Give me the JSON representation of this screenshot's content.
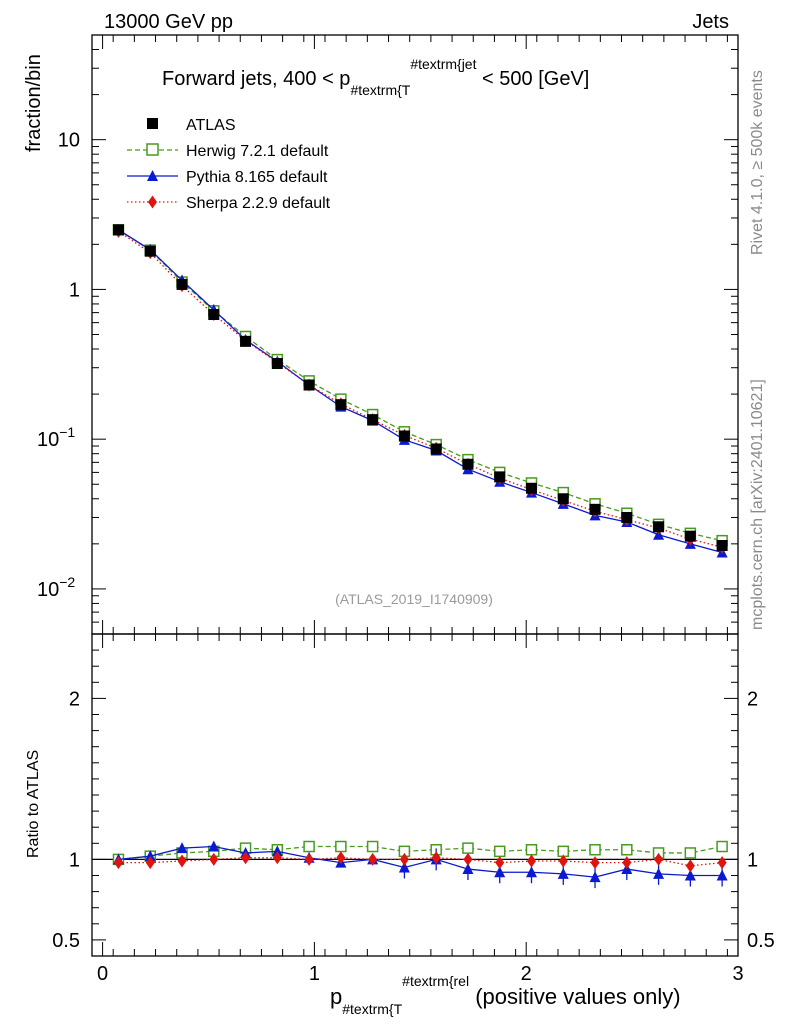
{
  "header": {
    "left": "13000 GeV pp",
    "right": "Jets"
  },
  "side_text": {
    "top": "Rivet 4.1.0, ≥ 500k events",
    "bottom": "mcplots.cern.ch [arXiv:2401.10621]"
  },
  "chart_data": {
    "type": "line",
    "title": {
      "prefix": "Forward jets, 400 < p",
      "sub": "#textrm{T",
      "sup": "#textrm{jet",
      "suffix": " < 500 [GeV]"
    },
    "watermark": "(ATLAS_2019_I1740909)",
    "ylabel_main": "fraction/bin",
    "ylabel_ratio": "Ratio to ATLAS",
    "xlabel": {
      "prefix": "p",
      "sub": "#textrm{T",
      "sup": "#textrm{rel",
      "suffix": " (positive values only)"
    },
    "xlim": [
      -0.05,
      3.0
    ],
    "ylim_main": [
      0.005,
      50
    ],
    "ylim_ratio": [
      0.4,
      2.4
    ],
    "x_ticks": [
      "0",
      "1",
      "2",
      "3"
    ],
    "y_ticks_main": [
      {
        "v": 10,
        "base": "10",
        "exp": ""
      },
      {
        "v": 1,
        "base": "1",
        "exp": ""
      },
      {
        "v": 0.1,
        "base": "10",
        "exp": "−1"
      },
      {
        "v": 0.01,
        "base": "10",
        "exp": "−2"
      }
    ],
    "y_ticks_ratio": [
      {
        "v": 0.5,
        "label": "0.5"
      },
      {
        "v": 1,
        "label": "1"
      },
      {
        "v": 2,
        "label": "2"
      }
    ],
    "x": [
      0.075,
      0.225,
      0.375,
      0.525,
      0.675,
      0.825,
      0.975,
      1.125,
      1.275,
      1.425,
      1.575,
      1.725,
      1.875,
      2.025,
      2.175,
      2.325,
      2.475,
      2.625,
      2.775,
      2.925
    ],
    "series": [
      {
        "name": "ATLAS",
        "color": "#000000",
        "marker": "square-filled",
        "line": "none",
        "values": [
          2.5,
          1.8,
          1.08,
          0.68,
          0.45,
          0.32,
          0.23,
          0.17,
          0.135,
          0.105,
          0.086,
          0.068,
          0.056,
          0.047,
          0.04,
          0.034,
          0.03,
          0.026,
          0.0225,
          0.0195
        ],
        "ratio": [
          1,
          1,
          1,
          1,
          1,
          1,
          1,
          1,
          1,
          1,
          1,
          1,
          1,
          1,
          1,
          1,
          1,
          1,
          1,
          1
        ]
      },
      {
        "name": "Herwig 7.2.1 default",
        "color": "#4a9a1e",
        "marker": "square-open",
        "line": "dashed",
        "values": [
          2.5,
          1.83,
          1.12,
          0.72,
          0.485,
          0.34,
          0.245,
          0.185,
          0.146,
          0.112,
          0.092,
          0.073,
          0.06,
          0.051,
          0.044,
          0.037,
          0.032,
          0.027,
          0.0235,
          0.021
        ],
        "ratio": [
          1.0,
          1.02,
          1.04,
          1.05,
          1.07,
          1.06,
          1.08,
          1.08,
          1.08,
          1.05,
          1.06,
          1.07,
          1.05,
          1.06,
          1.05,
          1.06,
          1.06,
          1.04,
          1.04,
          1.08
        ]
      },
      {
        "name": "Pythia 8.165 default",
        "color": "#0a1ad0",
        "marker": "triangle",
        "line": "solid",
        "values": [
          2.5,
          1.84,
          1.15,
          0.73,
          0.46,
          0.33,
          0.23,
          0.165,
          0.133,
          0.099,
          0.084,
          0.063,
          0.052,
          0.044,
          0.037,
          0.031,
          0.028,
          0.023,
          0.02,
          0.0175
        ],
        "ratio": [
          1.0,
          1.02,
          1.07,
          1.08,
          1.04,
          1.05,
          1.01,
          0.98,
          1.0,
          0.95,
          1.0,
          0.94,
          0.92,
          0.92,
          0.91,
          0.89,
          0.94,
          0.91,
          0.9,
          0.9
        ]
      },
      {
        "name": "Sherpa 2.2.9 default",
        "color": "#e0140f",
        "marker": "diamond",
        "line": "dotted",
        "values": [
          2.44,
          1.76,
          1.06,
          0.68,
          0.455,
          0.325,
          0.23,
          0.172,
          0.135,
          0.106,
          0.087,
          0.068,
          0.055,
          0.046,
          0.039,
          0.033,
          0.029,
          0.0255,
          0.0215,
          0.019
        ],
        "ratio": [
          0.98,
          0.98,
          0.99,
          1.0,
          1.01,
          1.01,
          1.0,
          1.01,
          1.0,
          1.0,
          1.01,
          1.0,
          0.98,
          0.99,
          0.99,
          0.98,
          0.98,
          1.0,
          0.96,
          0.98
        ]
      }
    ]
  }
}
